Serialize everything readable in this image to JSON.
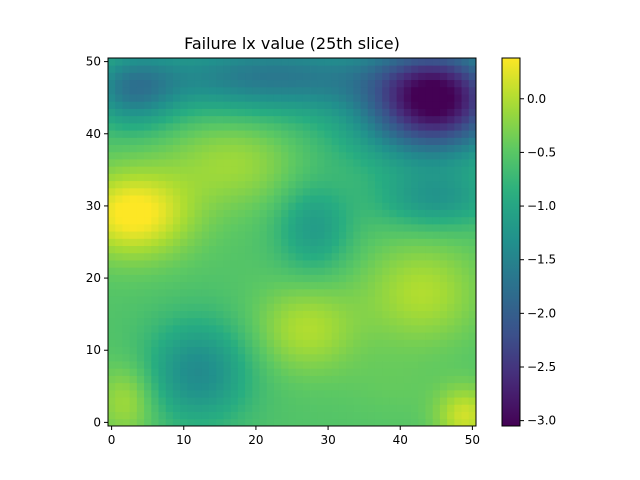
{
  "chart_data": {
    "type": "heatmap",
    "title": "Failure lx value (25th slice)",
    "xlabel": "",
    "ylabel": "",
    "grid_size": 51,
    "xlim": [
      -0.5,
      50.5
    ],
    "ylim": [
      -0.5,
      50.5
    ],
    "x_ticks": [
      0,
      10,
      20,
      30,
      40,
      50
    ],
    "y_ticks": [
      0,
      10,
      20,
      30,
      40,
      50
    ],
    "colorbar": {
      "colormap": "viridis",
      "vmin": -3.05,
      "vmax": 0.38,
      "ticks": [
        0.0,
        -0.5,
        -1.0,
        -1.5,
        -2.0,
        -2.5,
        -3.0
      ],
      "tick_labels": [
        "0.0",
        "−0.5",
        "−1.0",
        "−1.5",
        "−2.0",
        "−2.5",
        "−3.0"
      ]
    },
    "base_value": -0.55,
    "field_components": [
      {
        "cx": 45,
        "cy": 45,
        "sx": 9,
        "sy": 7,
        "amp": -2.4
      },
      {
        "cx": 22,
        "cy": 48,
        "sx": 18,
        "sy": 5,
        "amp": -1.1
      },
      {
        "cx": 3,
        "cy": 46,
        "sx": 6,
        "sy": 5,
        "amp": -0.9
      },
      {
        "cx": 3,
        "cy": 29,
        "sx": 8,
        "sy": 6,
        "amp": 1.0
      },
      {
        "cx": 17,
        "cy": 36,
        "sx": 9,
        "sy": 6,
        "amp": 0.45
      },
      {
        "cx": 28,
        "cy": 27,
        "sx": 5,
        "sy": 6,
        "amp": -0.6
      },
      {
        "cx": 45,
        "cy": 31,
        "sx": 8,
        "sy": 4,
        "amp": -0.65
      },
      {
        "cx": 12,
        "cy": 7,
        "sx": 7,
        "sy": 7,
        "amp": -0.85
      },
      {
        "cx": 2,
        "cy": 3,
        "sx": 4,
        "sy": 5,
        "amp": 0.5
      },
      {
        "cx": 27,
        "cy": 13,
        "sx": 7,
        "sy": 6,
        "amp": 0.55
      },
      {
        "cx": 43,
        "cy": 18,
        "sx": 8,
        "sy": 7,
        "amp": 0.55
      },
      {
        "cx": 49,
        "cy": 1,
        "sx": 4,
        "sy": 4,
        "amp": 0.7
      },
      {
        "cx": 39,
        "cy": 5,
        "sx": 7,
        "sy": 5,
        "amp": 0.1
      },
      {
        "cx": 40,
        "cy": 40,
        "sx": 14,
        "sy": 6,
        "amp": -0.3
      }
    ]
  }
}
